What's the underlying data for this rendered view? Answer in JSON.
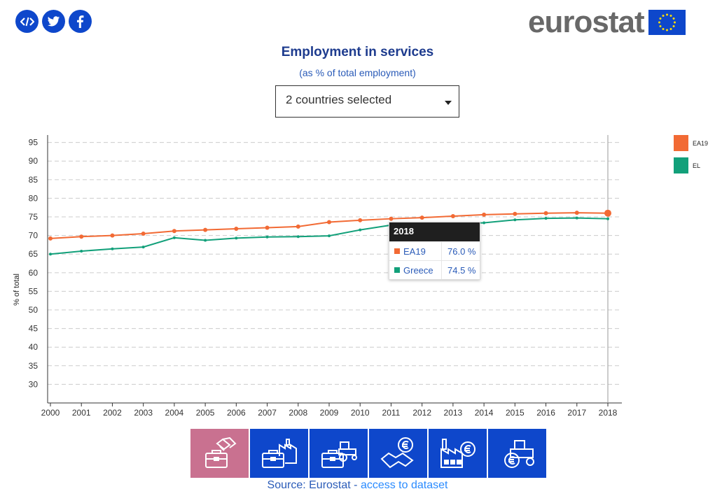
{
  "header": {
    "share_icons": [
      "embed-icon",
      "twitter-icon",
      "facebook-icon"
    ],
    "logo_text": "eurostat"
  },
  "title": "Employment in services",
  "subtitle": "(as % of total employment)",
  "selector": {
    "value": "2 countries selected"
  },
  "legend": [
    {
      "label": "EA19",
      "color": "#f26a34"
    },
    {
      "label": "EL",
      "color": "#12a07a"
    }
  ],
  "tooltip": {
    "year": "2018",
    "rows": [
      {
        "name": "EA19",
        "value": "76.0 %",
        "color": "#f26a34"
      },
      {
        "name": "Greece",
        "value": "74.5 %",
        "color": "#12a07a"
      }
    ]
  },
  "chart_data": {
    "type": "line",
    "ylabel": "% of total",
    "xlabel": "",
    "x": [
      "2000",
      "2001",
      "2002",
      "2003",
      "2004",
      "2005",
      "2006",
      "2007",
      "2008",
      "2009",
      "2010",
      "2011",
      "2012",
      "2013",
      "2014",
      "2015",
      "2016",
      "2017",
      "2018"
    ],
    "ylim": [
      25,
      97
    ],
    "yticks": [
      30,
      35,
      40,
      45,
      50,
      55,
      60,
      65,
      70,
      75,
      80,
      85,
      90,
      95
    ],
    "grid": true,
    "legend_position": "right",
    "highlight_x": "2018",
    "series": [
      {
        "name": "EA19",
        "color": "#f26a34",
        "values": [
          69.2,
          69.7,
          70.0,
          70.5,
          71.2,
          71.5,
          71.8,
          72.1,
          72.4,
          73.6,
          74.1,
          74.5,
          74.8,
          75.2,
          75.6,
          75.8,
          76.0,
          76.1,
          76.0
        ]
      },
      {
        "name": "EL",
        "color": "#12a07a",
        "values": [
          65.0,
          65.8,
          66.4,
          66.9,
          69.4,
          68.7,
          69.3,
          69.6,
          69.7,
          69.9,
          71.5,
          72.8,
          73.0,
          73.2,
          73.4,
          74.2,
          74.6,
          74.7,
          74.5
        ]
      }
    ]
  },
  "theme_buttons": [
    {
      "name": "services-theme-icon",
      "active": true
    },
    {
      "name": "industry-theme-icon",
      "active": false
    },
    {
      "name": "agriculture-theme-icon",
      "active": false
    },
    {
      "name": "finance-theme-icon",
      "active": false
    },
    {
      "name": "factory-finance-theme-icon",
      "active": false
    },
    {
      "name": "tractor-finance-theme-icon",
      "active": false
    }
  ],
  "source": {
    "prefix": "Source: Eurostat - ",
    "link": "access to dataset"
  }
}
